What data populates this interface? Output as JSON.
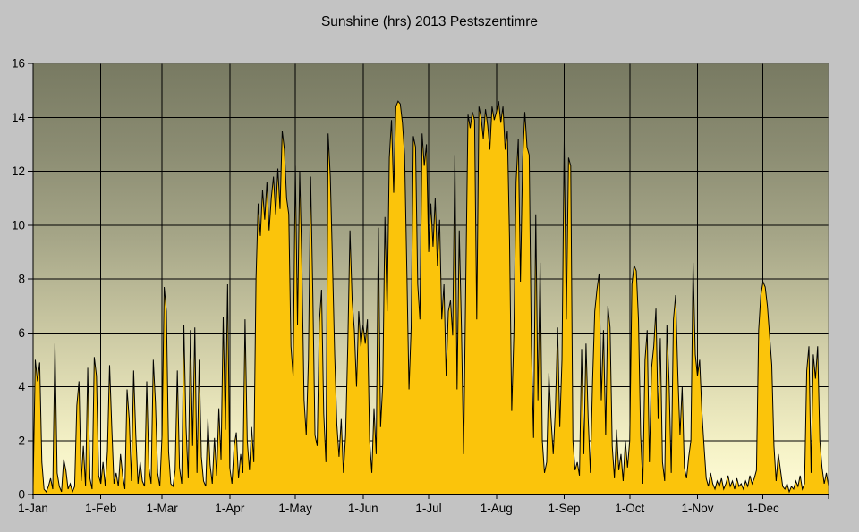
{
  "title": "Sunshine (hrs) 2013 Pestszentimre",
  "chart_data": {
    "type": "area",
    "title": "Sunshine (hrs) 2013 Pestszentimre",
    "xlabel": "",
    "ylabel": "",
    "unit": "hours of sunshine per day",
    "ylim": [
      0,
      16
    ],
    "y_ticks": [
      0,
      2,
      4,
      6,
      8,
      10,
      12,
      14,
      16
    ],
    "x_tick_labels": [
      "1-Jan",
      "1-Feb",
      "1-Mar",
      "1-Apr",
      "1-May",
      "1-Jun",
      "1-Jul",
      "1-Aug",
      "1-Sep",
      "1-Oct",
      "1-Nov",
      "1-Dec"
    ],
    "month_start_days": [
      1,
      32,
      60,
      91,
      121,
      152,
      182,
      213,
      244,
      274,
      305,
      335
    ],
    "grid": "both",
    "legend": "none",
    "colors": {
      "page_bg": "#C3C3C3",
      "fill": "#FBC40B",
      "outline": "#000000",
      "gridline": "#000000",
      "axis": "#000000",
      "plot_border": "#6E6E66",
      "plot_bg_gradient": [
        "#787A62",
        "#8B8C72",
        "#A5A587",
        "#C7C5A0",
        "#E5E2B8",
        "#F6F3C8",
        "#FFFCD8"
      ],
      "plot_bg_gradient_offsets": [
        0,
        0.2,
        0.4,
        0.6,
        0.78,
        0.9,
        1
      ]
    },
    "series": [
      {
        "name": "daily_sunshine_hours_2013",
        "values": [
          0.3,
          5.0,
          4.2,
          4.9,
          1.2,
          0.2,
          0.1,
          0.3,
          0.6,
          0.2,
          5.6,
          0.8,
          0.3,
          0.1,
          1.3,
          0.9,
          0.2,
          0.4,
          0.1,
          0.3,
          3.3,
          4.2,
          0.5,
          1.8,
          0.3,
          4.7,
          0.6,
          0.2,
          5.1,
          4.4,
          0.7,
          0.4,
          1.2,
          0.3,
          1.6,
          4.8,
          2.5,
          0.4,
          0.8,
          0.3,
          1.5,
          0.7,
          0.2,
          3.9,
          2.8,
          0.5,
          4.6,
          2.2,
          0.4,
          1.2,
          0.5,
          0.3,
          4.2,
          1.0,
          0.4,
          5.0,
          3.4,
          0.8,
          0.3,
          2.2,
          7.7,
          6.8,
          1.6,
          0.4,
          0.3,
          0.9,
          4.6,
          1.0,
          0.4,
          6.3,
          2.5,
          0.6,
          6.1,
          1.8,
          6.2,
          0.8,
          5.0,
          1.4,
          0.5,
          0.3,
          2.8,
          1.1,
          0.4,
          2.1,
          0.7,
          3.2,
          1.3,
          6.6,
          2.4,
          7.8,
          1.0,
          0.4,
          1.8,
          2.3,
          0.6,
          1.5,
          0.8,
          6.5,
          2.0,
          0.9,
          2.5,
          1.2,
          8.0,
          10.8,
          9.6,
          11.3,
          10.2,
          11.6,
          9.8,
          11.0,
          11.8,
          10.4,
          12.1,
          10.6,
          13.5,
          12.8,
          11.0,
          10.4,
          5.5,
          4.4,
          12.2,
          6.3,
          12.0,
          8.5,
          3.5,
          2.2,
          5.0,
          11.8,
          7.5,
          2.2,
          1.8,
          6.4,
          7.6,
          3.0,
          1.2,
          13.4,
          11.8,
          8.6,
          5.2,
          2.6,
          1.4,
          2.8,
          0.8,
          2.2,
          5.5,
          9.8,
          7.2,
          6.1,
          4.0,
          6.8,
          5.5,
          6.3,
          5.6,
          6.5,
          2.0,
          0.8,
          3.2,
          1.5,
          9.9,
          2.5,
          4.1,
          10.3,
          6.8,
          12.5,
          13.9,
          11.2,
          14.4,
          14.6,
          14.5,
          13.8,
          12.6,
          8.4,
          3.9,
          6.2,
          13.3,
          12.9,
          7.8,
          6.5,
          13.4,
          12.2,
          13.0,
          9.0,
          10.8,
          9.2,
          11.0,
          8.5,
          10.2,
          6.5,
          7.8,
          4.4,
          6.8,
          7.2,
          5.9,
          12.6,
          3.9,
          9.8,
          6.2,
          1.5,
          8.0,
          14.1,
          13.6,
          14.2,
          13.9,
          6.5,
          14.4,
          14.0,
          13.2,
          14.3,
          13.7,
          12.8,
          14.4,
          13.9,
          14.2,
          14.6,
          13.8,
          14.4,
          12.8,
          13.5,
          9.5,
          3.1,
          6.0,
          11.6,
          13.2,
          7.9,
          12.4,
          14.2,
          12.9,
          12.6,
          5.5,
          2.1,
          10.4,
          3.5,
          8.6,
          2.0,
          0.8,
          1.2,
          4.5,
          2.8,
          1.5,
          3.2,
          6.2,
          2.5,
          5.0,
          13.1,
          6.5,
          12.5,
          12.2,
          2.0,
          0.9,
          1.2,
          0.7,
          5.4,
          1.5,
          5.6,
          2.8,
          0.8,
          4.2,
          6.8,
          7.6,
          8.2,
          3.5,
          6.1,
          2.2,
          7.0,
          6.2,
          1.8,
          0.6,
          2.4,
          0.9,
          1.5,
          0.5,
          2.0,
          1.0,
          2.0,
          7.8,
          8.5,
          8.3,
          6.5,
          2.2,
          0.4,
          5.0,
          6.1,
          1.2,
          4.7,
          5.5,
          6.9,
          2.8,
          5.8,
          1.2,
          0.5,
          6.3,
          4.2,
          0.8,
          6.5,
          7.4,
          4.5,
          2.2,
          4.0,
          1.0,
          0.6,
          1.4,
          2.0,
          8.6,
          5.2,
          4.4,
          5.0,
          3.1,
          1.8,
          0.6,
          0.3,
          0.8,
          0.4,
          0.2,
          0.5,
          0.3,
          0.6,
          0.2,
          0.4,
          0.7,
          0.3,
          0.5,
          0.2,
          0.6,
          0.3,
          0.4,
          0.2,
          0.5,
          0.3,
          0.7,
          0.4,
          0.6,
          0.9,
          6.1,
          7.4,
          7.9,
          7.7,
          7.0,
          5.9,
          4.8,
          1.8,
          0.5,
          1.5,
          0.9,
          0.3,
          0.2,
          0.4,
          0.1,
          0.3,
          0.2,
          0.5,
          0.3,
          0.7,
          0.2,
          0.4,
          4.6,
          5.5,
          0.8,
          5.2,
          4.3,
          5.5,
          2.0,
          1.0,
          0.4,
          0.8,
          0.3
        ]
      }
    ]
  }
}
